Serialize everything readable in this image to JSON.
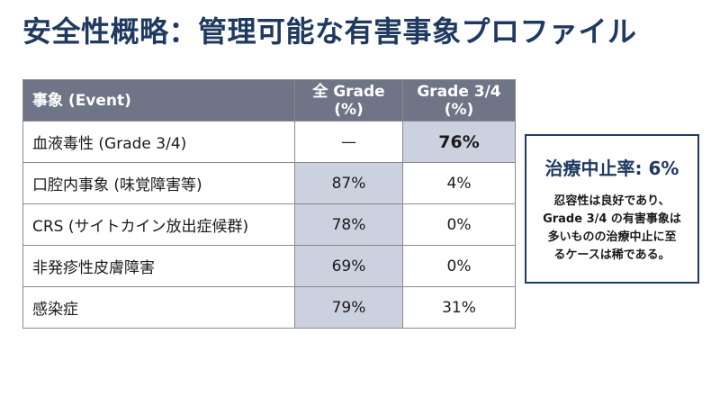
{
  "title": "安全性概略：管理可能な有害事象プロファイル",
  "table": {
    "headers": {
      "event": "事象 (Event)",
      "all_grade_line1": "全 Grade",
      "all_grade_line2": "(%)",
      "grade34_line1": "Grade 3/4",
      "grade34_line2": "(%)"
    },
    "rows": [
      {
        "event": "血液毒性 (Grade 3/4)",
        "all_grade": "—",
        "grade34": "76%"
      },
      {
        "event": "口腔内事象 (味覚障害等)",
        "all_grade": "87%",
        "grade34": "4%"
      },
      {
        "event": "CRS (サイトカイン放出症候群)",
        "all_grade": "78%",
        "grade34": "0%"
      },
      {
        "event": "非発疹性皮膚障害",
        "all_grade": "69%",
        "grade34": "0%"
      },
      {
        "event": "感染症",
        "all_grade": "79%",
        "grade34": "31%"
      }
    ]
  },
  "callout": {
    "heading": "治療中止率: 6%",
    "lines": [
      "忍容性は良好であり、",
      "Grade 3/4 の有害事象は",
      "多いものの治療中止に至",
      "るケースは稀である。"
    ]
  },
  "colors": {
    "title": "#1f3a60",
    "header_bg": "#6f7586",
    "shade": "#ccd1df",
    "callout_border": "#1f3a60"
  }
}
